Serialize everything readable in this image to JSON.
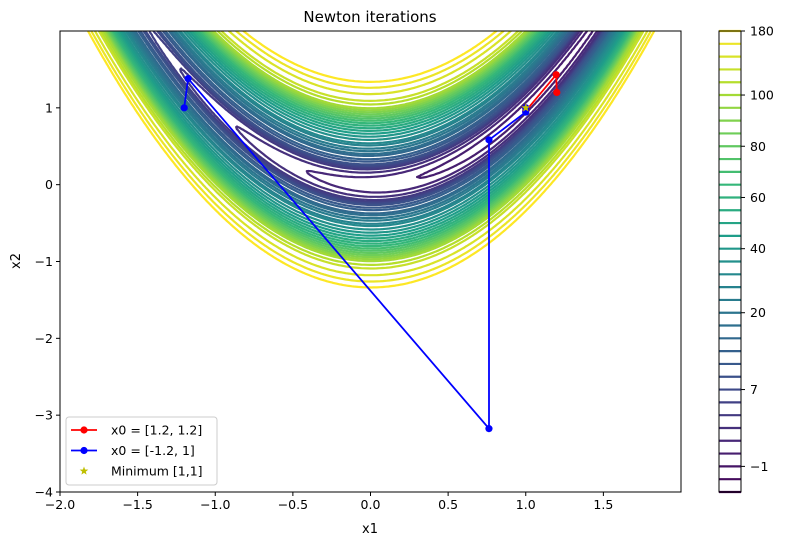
{
  "chart_data": {
    "type": "contour",
    "title": "Newton iterations",
    "xlabel": "x1",
    "ylabel": "x2",
    "xlim": [
      -2.0,
      2.0
    ],
    "ylim": [
      -4.0,
      2.0
    ],
    "x_ticks": [
      -2.0,
      -1.5,
      -1.0,
      -0.5,
      0.0,
      0.5,
      1.0,
      1.5
    ],
    "x_tick_labels": [
      "−2.0",
      "−1.5",
      "−1.0",
      "−0.5",
      "0.0",
      "0.5",
      "1.0",
      "1.5"
    ],
    "y_ticks": [
      -4,
      -3,
      -2,
      -1,
      0,
      1
    ],
    "y_tick_labels": [
      "−4",
      "−3",
      "−2",
      "−1",
      "0",
      "1"
    ],
    "function": "rosenbrock",
    "contour_levels": [
      -4,
      -2.5,
      -1,
      0.5,
      2,
      3.5,
      5,
      6,
      7,
      8,
      10,
      12,
      15,
      17,
      20,
      23,
      27,
      30,
      35,
      40,
      45,
      50,
      55,
      60,
      65,
      70,
      75,
      80,
      85,
      90,
      95,
      100,
      110,
      120,
      140,
      160,
      180
    ],
    "colormap": [
      "#440154",
      "#482878",
      "#3e4989",
      "#31688e",
      "#26828e",
      "#1f9e89",
      "#35b779",
      "#6ece58",
      "#b5de2b",
      "#fde725"
    ],
    "series": [
      {
        "name": "x0 = [1.2, 1.2]",
        "color": "#ff0000",
        "marker": "circle",
        "x": [
          1.2,
          1.196,
          1.0,
          1.0
        ],
        "y": [
          1.2,
          1.431,
          0.96,
          1.0
        ]
      },
      {
        "name": "x0 = [-1.2, 1]",
        "color": "#0000ff",
        "marker": "circle",
        "x": [
          -1.2,
          -1.175,
          0.763,
          0.763,
          1.0,
          1.0
        ],
        "y": [
          1.0,
          1.381,
          -3.175,
          0.583,
          0.944,
          1.0
        ]
      },
      {
        "name": "Minimum [1,1]",
        "color": "#bfbf00",
        "marker": "star",
        "x": [
          1.0
        ],
        "y": [
          1.0
        ]
      }
    ],
    "colorbar": {
      "tick_labels": [
        "180",
        "100",
        "80",
        "60",
        "40",
        "20",
        "7",
        "−1"
      ],
      "tick_levels": [
        180,
        100,
        80,
        60,
        40,
        20,
        7,
        -1
      ]
    },
    "legend_position": "lower-left"
  }
}
